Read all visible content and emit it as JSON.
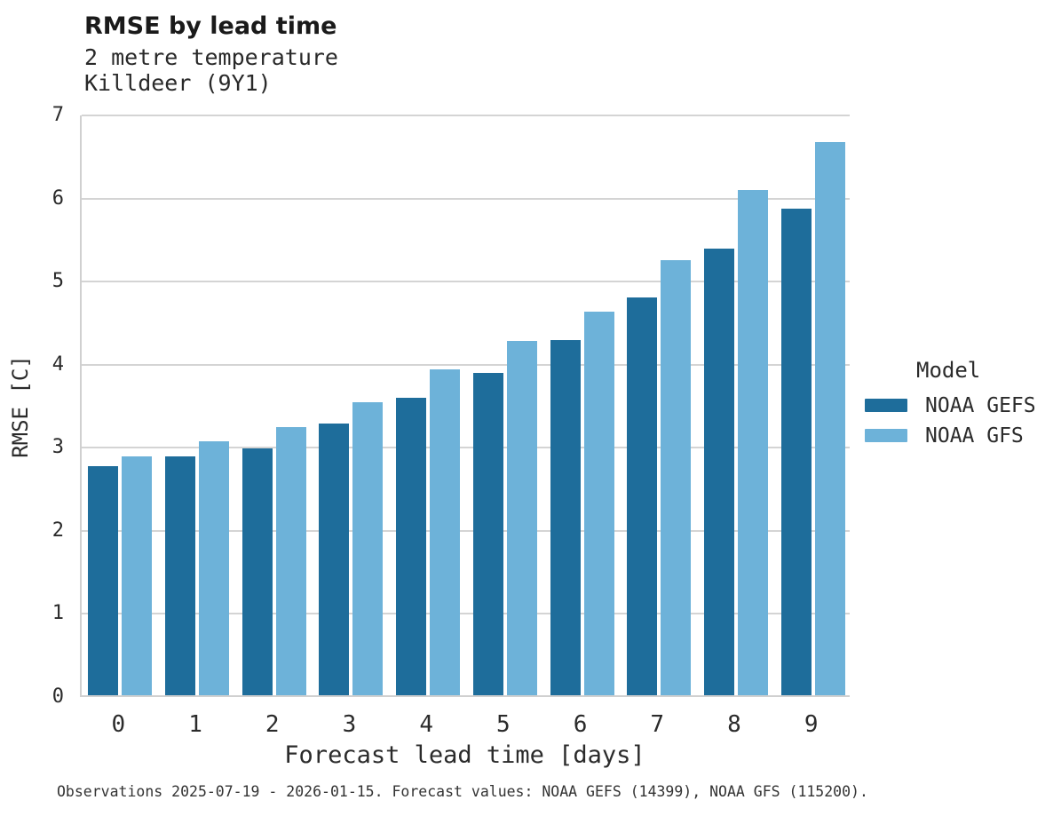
{
  "header": {
    "title": "RMSE by lead time",
    "subtitle_line1": "2 metre temperature",
    "subtitle_line2": "Killdeer (9Y1)"
  },
  "chart_data": {
    "type": "bar",
    "title": "RMSE by lead time",
    "subtitle": [
      "2 metre temperature",
      "Killdeer (9Y1)"
    ],
    "categories": [
      "0",
      "1",
      "2",
      "3",
      "4",
      "5",
      "6",
      "7",
      "8",
      "9"
    ],
    "series": [
      {
        "name": "NOAA GEFS",
        "color": "#1e6d9b",
        "values": [
          2.76,
          2.88,
          2.97,
          3.27,
          3.58,
          3.88,
          4.28,
          4.79,
          5.38,
          5.86
        ]
      },
      {
        "name": "NOAA GFS",
        "color": "#6db2d9",
        "values": [
          2.88,
          3.06,
          3.23,
          3.53,
          3.92,
          4.26,
          4.62,
          5.24,
          6.08,
          6.66
        ]
      }
    ],
    "xlabel": "Forecast lead time [days]",
    "ylabel": "RMSE [C]",
    "ylim": [
      0,
      7
    ],
    "yticks": [
      0,
      1,
      2,
      3,
      4,
      5,
      6,
      7
    ],
    "grid": true,
    "legend_position": "right-center"
  },
  "legend": {
    "title": "Model",
    "entries": [
      {
        "label": "NOAA GEFS",
        "color": "#1e6d9b"
      },
      {
        "label": "NOAA GFS",
        "color": "#6db2d9"
      }
    ]
  },
  "footer": {
    "text": "Observations 2025-07-19 - 2026-01-15. Forecast values: NOAA GEFS (14399), NOAA GFS (115200)."
  },
  "colors": {
    "background": "#ffffff",
    "gridline": "#d4d4d4",
    "axis_spine": "#d0d0d0",
    "title_text": "#1a1a1a",
    "body_text": "#2b2b2b",
    "series_dark": "#1e6d9b",
    "series_light": "#6db2d9"
  }
}
